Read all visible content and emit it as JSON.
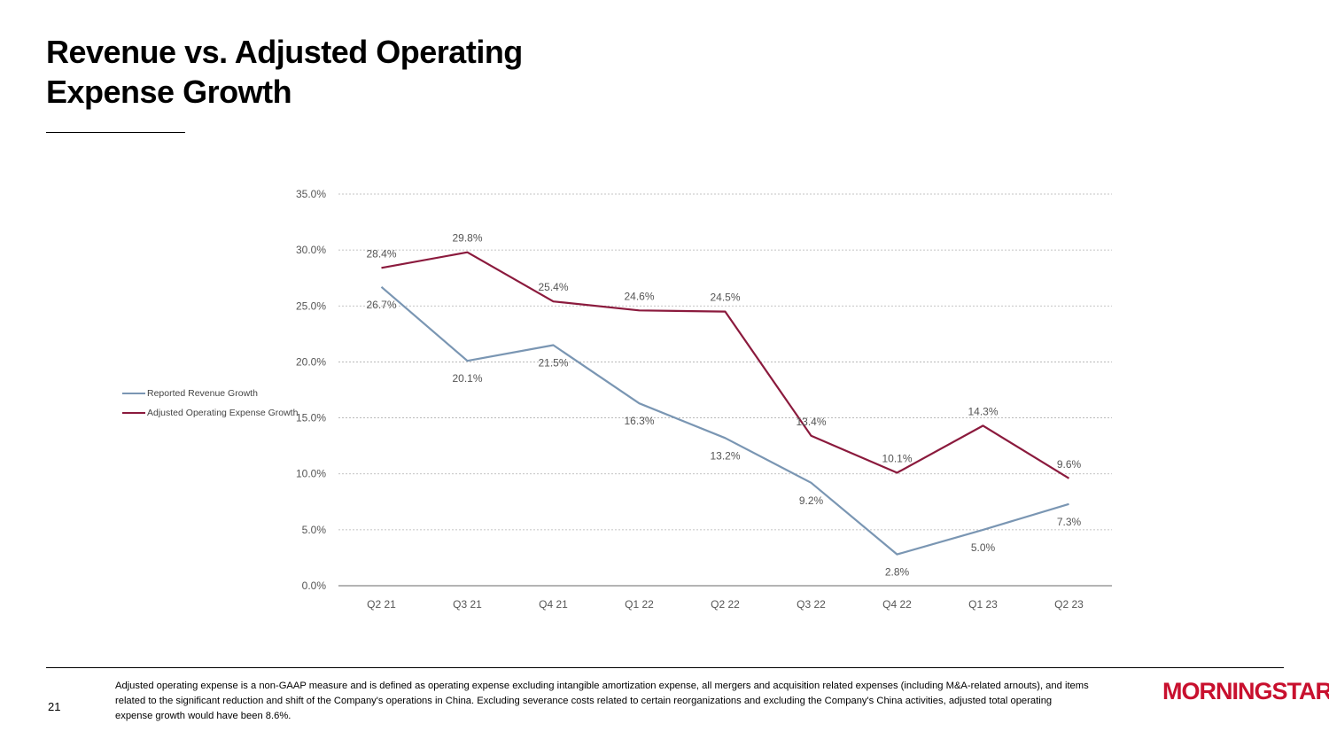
{
  "title": "Revenue vs. Adjusted Operating Expense Growth",
  "page_number": "21",
  "footnote": "Adjusted operating expense is a non-GAAP measure and is defined as operating expense excluding intangible amortization expense, all mergers and acquisition related expenses (including M&A-related arnouts), and items related to the significant reduction and shift of the Company's operations in China. Excluding severance costs related to certain reorganizations and excluding the Company's China activities, adjusted total operating expense growth would have been 8.6%.",
  "logo": {
    "text": "MORNINGSTAR",
    "mark": "®"
  },
  "colors": {
    "revenue": "#7a96b3",
    "opex": "#8b1a3d",
    "grid": "#b0b0b0",
    "axis": "#888888",
    "text": "#555555"
  },
  "chart_data": {
    "type": "line",
    "title": "",
    "xlabel": "",
    "ylabel": "",
    "ylim": [
      0,
      35
    ],
    "y_ticks": [
      "0.0%",
      "5.0%",
      "10.0%",
      "15.0%",
      "20.0%",
      "25.0%",
      "30.0%",
      "35.0%"
    ],
    "categories": [
      "Q2 21",
      "Q3 21",
      "Q4 21",
      "Q1 22",
      "Q2 22",
      "Q3 22",
      "Q4 22",
      "Q1 23",
      "Q2 23"
    ],
    "legend_position": "left",
    "series": [
      {
        "name": "Reported Revenue Growth",
        "color": "#7a96b3",
        "values": [
          26.7,
          20.1,
          21.5,
          16.3,
          13.2,
          9.2,
          2.8,
          5.0,
          7.3
        ],
        "labels": [
          "26.7%",
          "20.1%",
          "21.5%",
          "16.3%",
          "13.2%",
          "9.2%",
          "2.8%",
          "5.0%",
          "7.3%"
        ]
      },
      {
        "name": "Adjusted Operating Expense Growth",
        "color": "#8b1a3d",
        "values": [
          28.4,
          29.8,
          25.4,
          24.6,
          24.5,
          13.4,
          10.1,
          14.3,
          9.6
        ],
        "labels": [
          "28.4%",
          "29.8%",
          "25.4%",
          "24.6%",
          "24.5%",
          "13.4%",
          "10.1%",
          "14.3%",
          "9.6%"
        ]
      }
    ]
  }
}
